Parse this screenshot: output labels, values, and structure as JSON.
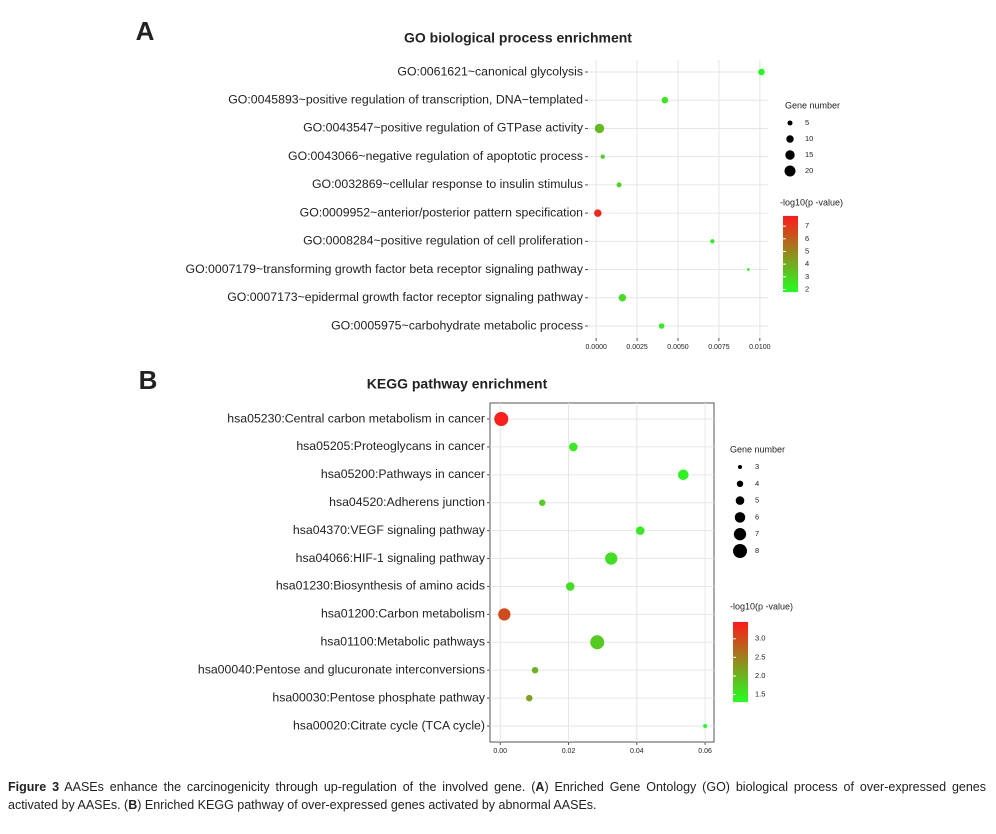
{
  "chart_data": [
    {
      "type": "scatter",
      "panel_label": "A",
      "title": "GO biological process enrichment",
      "categories": [
        "GO:0061621~canonical glycolysis",
        "GO:0045893~positive regulation of transcription, DNA−templated",
        "GO:0043547~positive regulation of GTPase activity",
        "GO:0043066~negative regulation of apoptotic process",
        "GO:0032869~cellular response to insulin stimulus",
        "GO:0009952~anterior/posterior pattern specification",
        "GO:0008284~positive regulation of cell proliferation",
        "GO:0007179~transforming growth factor beta receptor signaling pathway",
        "GO:0007173~epidermal growth factor receptor signaling pathway",
        "GO:0005975~carbohydrate metabolic process"
      ],
      "x": [
        0.0101,
        0.0042,
        0.0002,
        0.0004,
        0.0014,
        0.0001,
        0.0071,
        0.0093,
        0.0016,
        0.004
      ],
      "size": [
        8,
        8,
        15,
        4,
        5,
        10,
        4,
        2,
        10,
        6
      ],
      "color_values": [
        2,
        2.4,
        3.6,
        3,
        2.8,
        7.5,
        2.1,
        2,
        2.7,
        2.3
      ],
      "xlim": [
        -0.0005,
        0.0105
      ],
      "xticks": [
        {
          "value": 0,
          "label": "0.0000"
        },
        {
          "value": 0.0025,
          "label": "0.0025"
        },
        {
          "value": 0.005,
          "label": "0.0050"
        },
        {
          "value": 0.0075,
          "label": "0.0075"
        },
        {
          "value": 0.01,
          "label": "0.0100"
        }
      ],
      "size_legend_title": "Gene number",
      "size_ticks": [
        5,
        10,
        15,
        20
      ],
      "color_legend_title": "-log10(p -value)",
      "colorlim": [
        1.8,
        7.8
      ],
      "color_ticks": [
        2,
        3,
        4,
        5,
        6,
        7
      ],
      "color_low": "#22ff22",
      "color_high": "#ff1a1a",
      "grid": true
    },
    {
      "type": "scatter",
      "panel_label": "B",
      "title": "KEGG pathway enrichment",
      "categories": [
        "hsa05230:Central carbon metabolism in cancer",
        "hsa05205:Proteoglycans in cancer",
        "hsa05200:Pathways in cancer",
        "hsa04520:Adherens junction",
        "hsa04370:VEGF signaling pathway",
        "hsa04066:HIF-1 signaling pathway",
        "hsa01230:Biosynthesis of amino acids",
        "hsa01200:Carbon metabolism",
        "hsa01100:Metabolic pathways",
        "hsa00040:Pentose and glucuronate interconversions",
        "hsa00030:Pentose phosphate pathway",
        "hsa00020:Citrate cycle (TCA cycle)"
      ],
      "x": [
        0.0003,
        0.0214,
        0.0536,
        0.0123,
        0.041,
        0.0325,
        0.0205,
        0.0012,
        0.0284,
        0.0102,
        0.0085,
        0.06
      ],
      "size": [
        8,
        5,
        6,
        4,
        5,
        7,
        5,
        7,
        8,
        4,
        4,
        3
      ],
      "color_values": [
        3.4,
        1.5,
        1.4,
        1.8,
        1.5,
        1.6,
        1.6,
        3.0,
        1.8,
        2.0,
        2.2,
        1.3
      ],
      "xlim": [
        -0.003,
        0.0626
      ],
      "xticks": [
        {
          "value": 0,
          "label": "0.00"
        },
        {
          "value": 0.02,
          "label": "0.02"
        },
        {
          "value": 0.04,
          "label": "0.04"
        },
        {
          "value": 0.06,
          "label": "0.06"
        }
      ],
      "size_legend_title": "Gene number",
      "size_ticks": [
        3,
        4,
        5,
        6,
        7,
        8
      ],
      "color_legend_title": "-log10(p -value)",
      "colorlim": [
        1.3,
        3.45
      ],
      "color_ticks": [
        {
          "value": 1.5,
          "label": "1.5"
        },
        {
          "value": 2,
          "label": "2.0"
        },
        {
          "value": 2.5,
          "label": "2.5"
        },
        {
          "value": 3,
          "label": "3.0"
        }
      ],
      "color_low": "#22ff22",
      "color_high": "#ff1a1a",
      "grid": true
    }
  ],
  "caption": {
    "label": "Figure 3",
    "text1": " AASEs enhance the carcinogenicity through up-regulation of the involved gene. (",
    "a": "A",
    "text2": ") Enriched Gene Ontology (GO) biological process of over-expressed genes activated by AASEs. (",
    "b": "B",
    "text3": ") Enriched KEGG pathway of over-expressed genes activated by abnormal AASEs."
  }
}
